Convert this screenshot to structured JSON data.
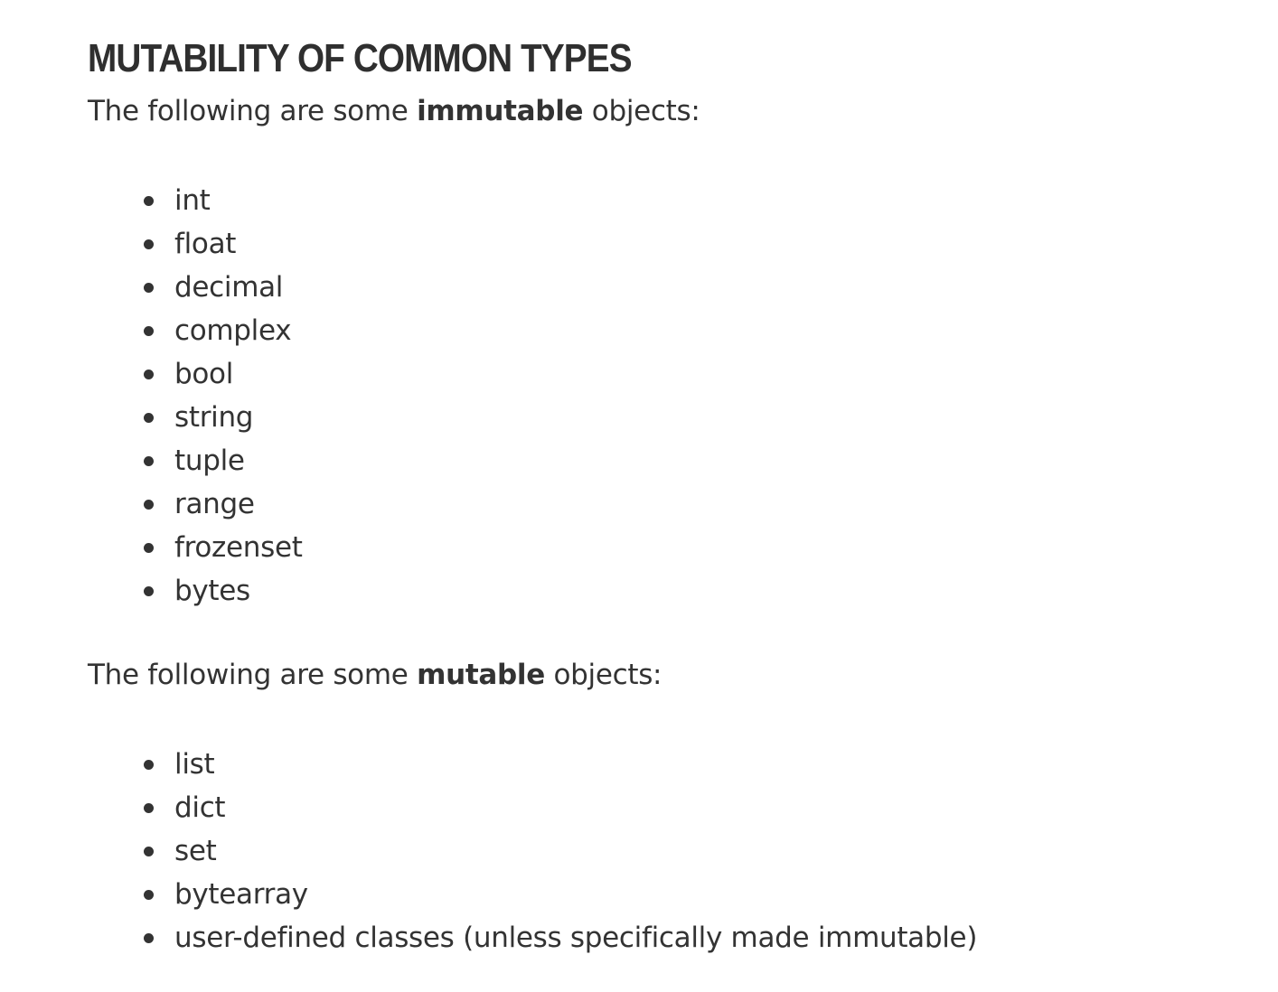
{
  "heading": "MUTABILITY OF COMMON TYPES",
  "immutable_intro": {
    "before": "The following are some ",
    "emphasis": "immutable",
    "after": " objects:"
  },
  "immutable_items": [
    "int",
    "float",
    "decimal",
    "complex",
    "bool",
    "string",
    "tuple",
    "range",
    "frozenset",
    "bytes"
  ],
  "mutable_intro": {
    "before": "The following are some ",
    "emphasis": "mutable",
    "after": " objects:"
  },
  "mutable_items": [
    "list",
    "dict",
    "set",
    "bytearray",
    "user-defined classes (unless specifically made immutable)"
  ],
  "colors": {
    "text": "#333333",
    "background": "#ffffff"
  }
}
